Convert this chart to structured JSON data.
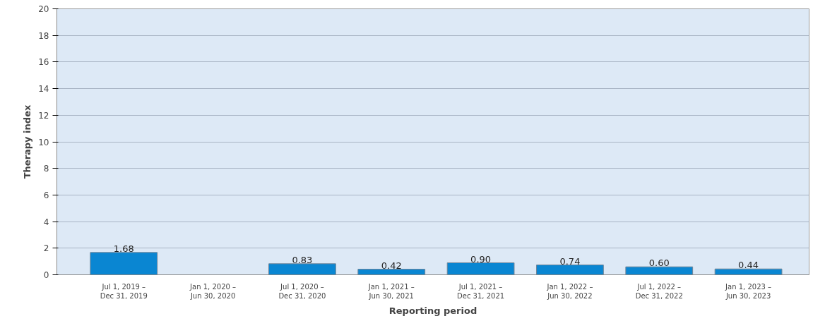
{
  "chart_data": {
    "type": "bar",
    "xlabel": "Reporting period",
    "ylabel": "Therapy index",
    "categories": [
      "Jul 1, 2019 –\nDec 31, 2019",
      "Jan 1, 2020 –\nJun 30, 2020",
      "Jul 1, 2020 –\nDec 31, 2020",
      "Jan 1, 2021 –\nJun 30, 2021",
      "Jul 1, 2021 –\nDec 31, 2021",
      "Jan 1, 2022 –\nJun 30, 2022",
      "Jul 1, 2022 –\nDec 31, 2022",
      "Jan 1, 2023 –\nJun 30, 2023"
    ],
    "values": [
      1.68,
      null,
      0.83,
      0.42,
      0.9,
      0.74,
      0.6,
      0.44
    ],
    "value_labels": [
      "1.68",
      null,
      "0.83",
      "0.42",
      "0.90",
      "0.74",
      "0.60",
      "0.44"
    ],
    "color": "#0a86d2",
    "ylim": [
      0,
      20
    ],
    "yticks": [
      0,
      2,
      4,
      6,
      8,
      10,
      12,
      14,
      16,
      18,
      20
    ],
    "grid": "y"
  }
}
